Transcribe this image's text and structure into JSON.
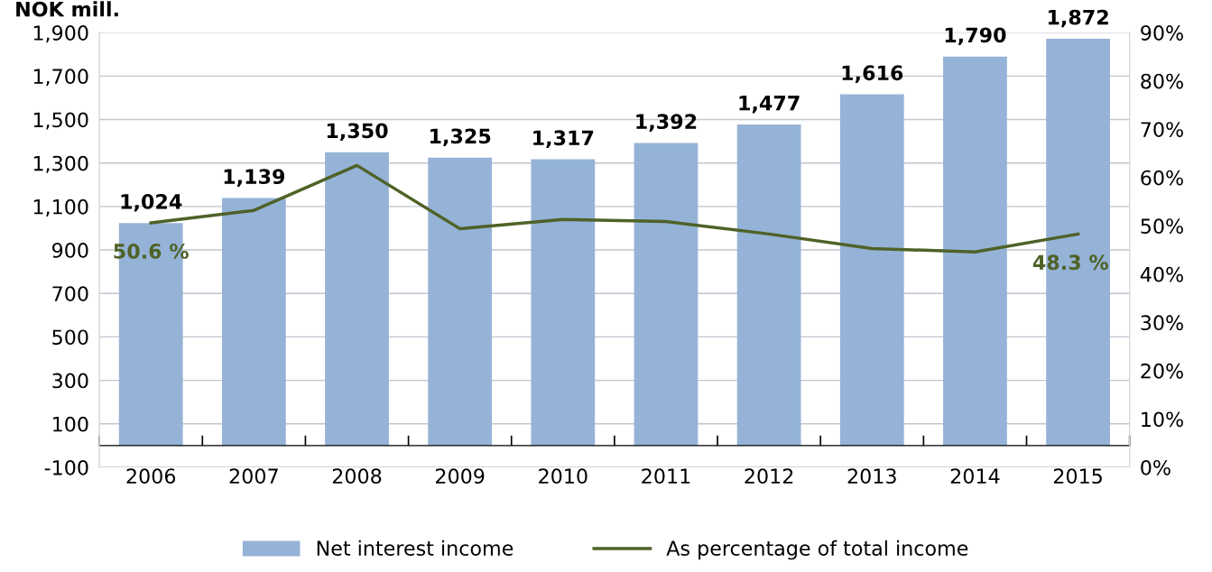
{
  "chart_data": {
    "type": "bar",
    "title": "NOK mill.",
    "categories": [
      "2006",
      "2007",
      "2008",
      "2009",
      "2010",
      "2011",
      "2012",
      "2013",
      "2014",
      "2015"
    ],
    "series": [
      {
        "name": "Net interest income",
        "color": "#95b3d7",
        "values": [
          1024,
          1139,
          1350,
          1325,
          1317,
          1392,
          1477,
          1616,
          1790,
          1872
        ],
        "value_labels": [
          "1,024",
          "1,139",
          "1,350",
          "1,325",
          "1,317",
          "1,392",
          "1,477",
          "1,616",
          "1,790",
          "1,872"
        ]
      },
      {
        "name": "As percentage of total income",
        "type": "line",
        "axis": "y2",
        "color": "#4f6228",
        "values": [
          50.6,
          53.2,
          62.5,
          49.4,
          51.3,
          50.9,
          48.3,
          45.3,
          44.6,
          48.3
        ],
        "value_labels": [
          "50.6 %",
          null,
          null,
          null,
          null,
          null,
          null,
          null,
          null,
          "48.3 %"
        ]
      }
    ],
    "ylim": [
      -100,
      1900
    ],
    "yticks": [
      -100,
      100,
      300,
      500,
      700,
      900,
      {
        "value": 1100,
        "label": "1,100"
      },
      {
        "value": 1300,
        "label": "1,300"
      },
      {
        "value": 1500,
        "label": "1,500"
      },
      {
        "value": 1700,
        "label": "1,700"
      },
      {
        "value": 1900,
        "label": "1,900"
      }
    ],
    "y2lim": [
      0,
      90
    ],
    "y2ticks": [
      {
        "value": 0,
        "label": "0%"
      },
      {
        "value": 10,
        "label": "10%"
      },
      {
        "value": 20,
        "label": "20%"
      },
      {
        "value": 30,
        "label": "30%"
      },
      {
        "value": 40,
        "label": "40%"
      },
      {
        "value": 50,
        "label": "50%"
      },
      {
        "value": 60,
        "label": "60%"
      },
      {
        "value": 70,
        "label": "70%"
      },
      {
        "value": 80,
        "label": "80%"
      },
      {
        "value": 90,
        "label": "90%"
      }
    ],
    "grid": "y",
    "legend": "bottom",
    "marker": "none",
    "line_style": "solid"
  }
}
